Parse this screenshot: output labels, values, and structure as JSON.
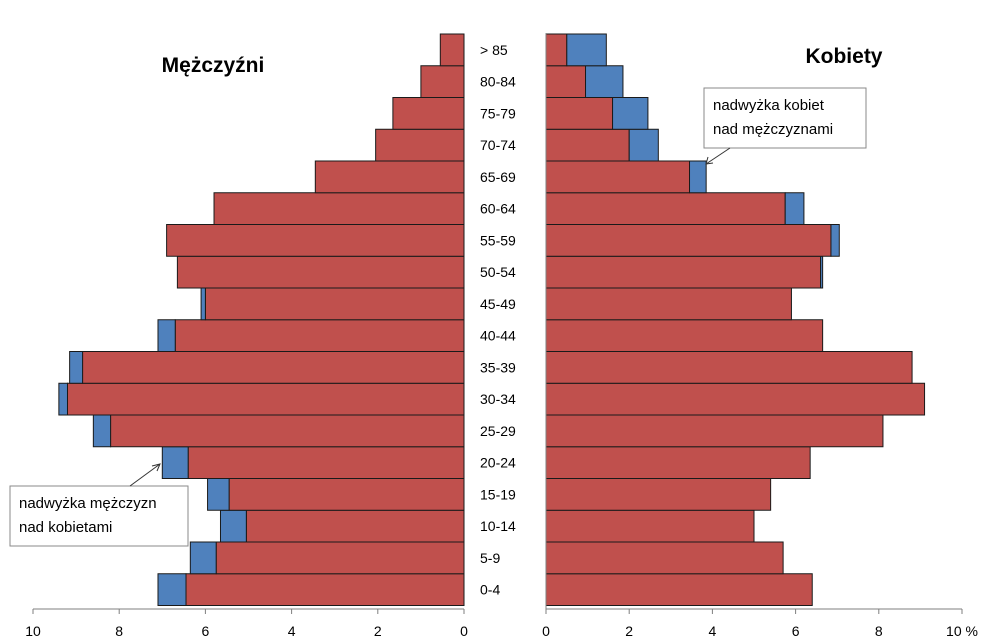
{
  "chart_data": {
    "type": "bar",
    "subtype": "population-pyramid",
    "categories": [
      "0-4",
      "5-9",
      "10-14",
      "15-19",
      "20-24",
      "25-29",
      "30-34",
      "35-39",
      "40-44",
      "45-49",
      "50-54",
      "55-59",
      "60-64",
      "65-69",
      "70-74",
      "75-79",
      "80-84",
      "> 85"
    ],
    "male": {
      "title": "Mężczyźni",
      "base": [
        6.45,
        5.75,
        5.05,
        5.45,
        6.4,
        8.2,
        9.2,
        8.85,
        6.7,
        6.0,
        6.65,
        6.9,
        5.8,
        3.45,
        2.05,
        1.65,
        1.0,
        0.55
      ],
      "surplus": [
        0.65,
        0.6,
        0.6,
        0.5,
        0.6,
        0.4,
        0.2,
        0.3,
        0.4,
        0.1,
        0.0,
        0.0,
        0.0,
        0.0,
        0.0,
        0.0,
        0.0,
        0.0
      ]
    },
    "female": {
      "title": "Kobiety",
      "base": [
        6.4,
        5.7,
        5.0,
        5.4,
        6.35,
        8.1,
        9.1,
        8.8,
        6.65,
        5.9,
        6.6,
        6.85,
        5.75,
        3.45,
        2.0,
        1.6,
        0.95,
        0.5
      ],
      "surplus": [
        0.0,
        0.0,
        0.0,
        0.0,
        0.0,
        0.0,
        0.0,
        0.0,
        0.0,
        0.0,
        0.05,
        0.2,
        0.45,
        0.4,
        0.7,
        0.85,
        0.9,
        0.95
      ]
    },
    "series": [
      {
        "name": "",
        "color": "#c0504d"
      },
      {
        "name": "nadwyżka",
        "color": "#4f81bd"
      }
    ],
    "xlim_male": [
      10,
      0
    ],
    "xlim_female": [
      0,
      10
    ],
    "male_ticks": [
      "10",
      "8",
      "6",
      "4",
      "2",
      "0"
    ],
    "female_ticks": [
      "0",
      "2",
      "4",
      "6",
      "8",
      "10 %"
    ],
    "annotations": [
      {
        "lines": [
          "nadwyżka kobiet",
          "nad mężczyznami"
        ]
      },
      {
        "lines": [
          "nadwyżka mężczyzn",
          "nad kobietami"
        ]
      }
    ],
    "grid": false,
    "colors": {
      "base": "#c0504d",
      "surplus": "#4f81bd",
      "outline": "#1a1a1a"
    }
  }
}
